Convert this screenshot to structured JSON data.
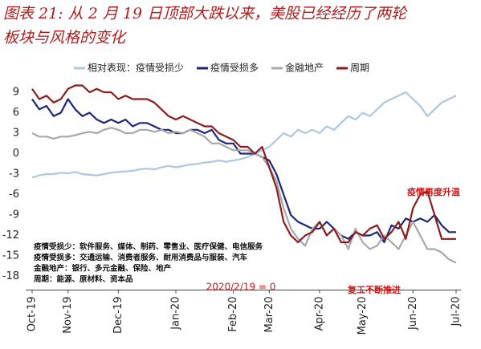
{
  "chart_data": {
    "type": "line",
    "title": "图表 21: 从 2 月 19 日顶部大跌以来，美股已经经历了两轮板块与风格的变化",
    "x": [
      0,
      1,
      2,
      3,
      4,
      5,
      6,
      7,
      8,
      9,
      10,
      11,
      12,
      13,
      14,
      15,
      16,
      17,
      18,
      19,
      20,
      21,
      22,
      23,
      24,
      25,
      26,
      27,
      28,
      29,
      30,
      31,
      32,
      33,
      34,
      35,
      36,
      37,
      38,
      39,
      40,
      41,
      42,
      43,
      44,
      45,
      46,
      47,
      48,
      49,
      50,
      51,
      52,
      53,
      54,
      55,
      56,
      57,
      58,
      59
    ],
    "xlim": [
      0,
      59
    ],
    "xticks": [
      {
        "value": 0,
        "label": "Oct-19"
      },
      {
        "value": 5,
        "label": "Nov-19"
      },
      {
        "value": 12,
        "label": "Dec-19"
      },
      {
        "value": 20,
        "label": "Jan-20"
      },
      {
        "value": 28,
        "label": "Feb-20"
      },
      {
        "value": 33,
        "label": "Mar-20"
      },
      {
        "value": 40,
        "label": "Apr-20"
      },
      {
        "value": 46,
        "label": "May-20"
      },
      {
        "value": 53,
        "label": "Jun-20"
      },
      {
        "value": 59,
        "label": "Jul-20"
      }
    ],
    "ylim": [
      -20,
      12
    ],
    "yticks": [
      9,
      6,
      3,
      0,
      -3,
      -6,
      -9,
      -12,
      -15,
      -18
    ],
    "grid": false,
    "legend": "top",
    "series": [
      {
        "name": "相对表现：疫情受损少",
        "color": "#adc6e3",
        "values": [
          -3.5,
          -3.2,
          -3,
          -3,
          -2.8,
          -2.9,
          -2.7,
          -3,
          -3.1,
          -3.2,
          -3,
          -2.8,
          -2.7,
          -2.6,
          -2.5,
          -2.3,
          -2.2,
          -2.3,
          -2,
          -1.8,
          -2,
          -1.8,
          -1.6,
          -1.5,
          -1.3,
          -1.2,
          -1,
          -1.2,
          -1,
          -0.8,
          -0.5,
          0,
          0.5,
          1,
          2,
          3,
          2.5,
          3.5,
          3,
          3.5,
          3,
          4,
          3.5,
          4.5,
          5.5,
          5,
          6,
          5.5,
          6.5,
          7.5,
          8,
          8.5,
          9,
          8,
          7,
          5.5,
          6.5,
          7.5,
          8,
          8.5
        ]
      },
      {
        "name": "疫情受损多",
        "color": "#1c2778",
        "values": [
          8,
          6.5,
          7,
          5.5,
          6,
          8,
          6.5,
          5.5,
          6,
          5,
          4.5,
          5,
          4.5,
          5,
          4,
          4.5,
          4.5,
          4,
          3.5,
          3.5,
          3,
          3,
          3.5,
          3.5,
          3,
          3.5,
          2,
          1.5,
          1.5,
          0,
          0,
          0,
          -0.5,
          -1,
          -3,
          -6,
          -9,
          -10,
          -10.5,
          -11,
          -11,
          -10,
          -11,
          -12,
          -12.5,
          -11.5,
          -12,
          -12,
          -11.5,
          -13,
          -10.5,
          -11,
          -9.5,
          -10,
          -9.5,
          -10,
          -9,
          -10.5,
          -11.5,
          -11.5
        ]
      },
      {
        "name": "金融地产",
        "color": "#a8a8a8",
        "values": [
          3,
          2.5,
          2.5,
          2.2,
          2.5,
          2.5,
          2.7,
          3,
          3.2,
          3,
          3.5,
          3.8,
          3.5,
          3,
          3,
          3.5,
          3.5,
          3.2,
          3.5,
          3,
          3.2,
          3,
          3.5,
          3,
          2.5,
          1.5,
          1.5,
          1,
          0.5,
          0.5,
          0.5,
          0,
          -0.5,
          -2,
          -4,
          -8,
          -11,
          -12.5,
          -13.5,
          -11,
          -10,
          -12,
          -11,
          -12,
          -14,
          -11,
          -13,
          -14,
          -13.5,
          -12,
          -13,
          -14,
          -12,
          -10,
          -12,
          -14,
          -14,
          -14.5,
          -15.5,
          -16
        ]
      },
      {
        "name": "周期",
        "color": "#8c1c1c",
        "values": [
          9.5,
          8,
          8.5,
          7.5,
          8,
          9.5,
          10,
          10,
          9,
          9.5,
          9,
          9,
          8,
          8.5,
          8,
          8,
          8,
          7.5,
          6.5,
          5.5,
          5,
          5.5,
          5,
          4.5,
          4,
          4,
          3,
          2.5,
          2,
          1,
          1,
          0,
          1,
          -2,
          -5,
          -10,
          -12,
          -13,
          -12,
          -11.5,
          -10,
          -12,
          -11,
          -13,
          -13,
          -11.5,
          -12,
          -11,
          -10.5,
          -12.5,
          -11.5,
          -10,
          -12.5,
          -8,
          -6,
          -5.5,
          -9,
          -12.5,
          -12.5,
          -12.5
        ]
      }
    ],
    "annotations": [
      "疫情再度升温",
      "复工不断推进",
      "2020/2/19 = 0"
    ],
    "notes": [
      "疫情受损少：软件服务、媒体、制药、零售业、医疗保健、电信服务",
      "疫情受损多：交通运输、消费者服务、耐用消费品与服装、汽车",
      "金融地产：银行、多元金融、保险、地产",
      "周期：能源、原材料、资本品"
    ]
  }
}
